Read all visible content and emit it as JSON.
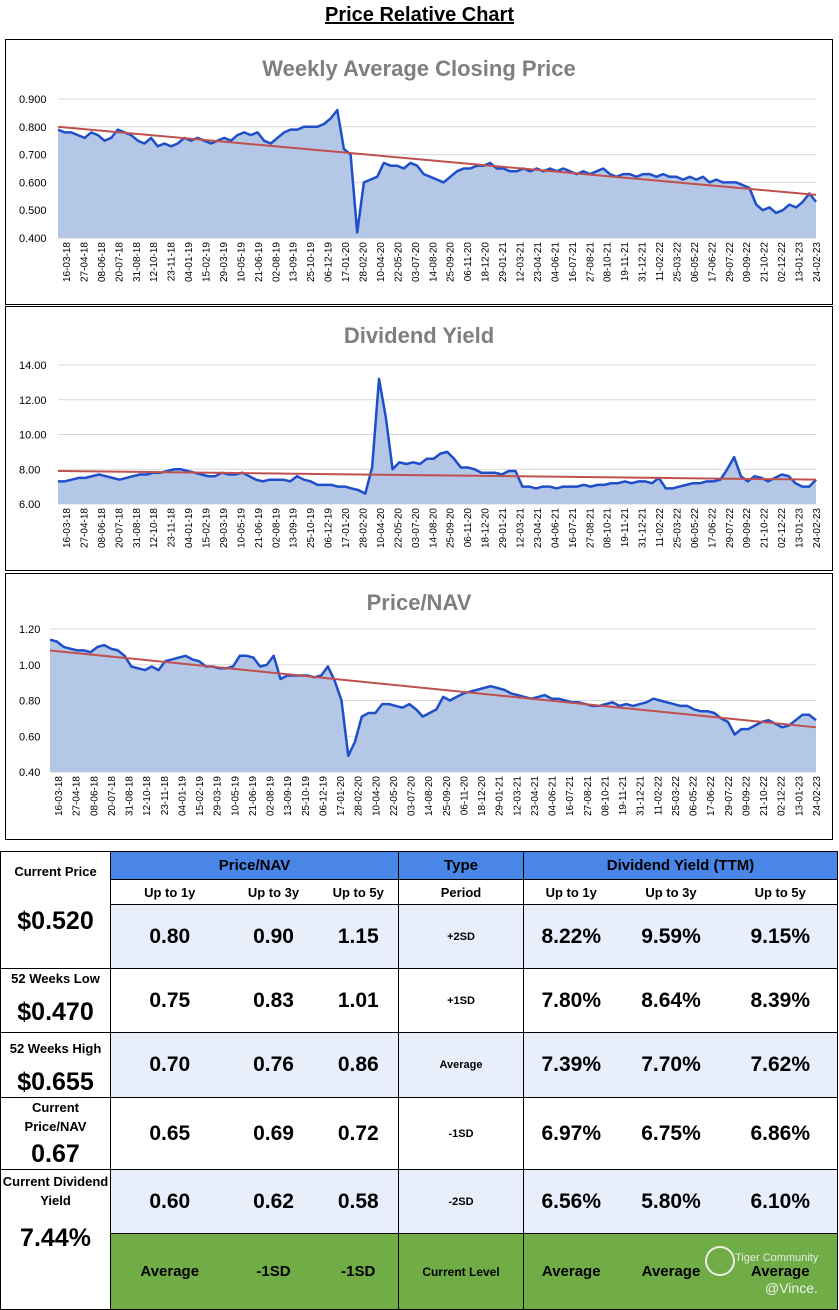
{
  "page_title": "Price Relative Chart",
  "colors": {
    "line": "#1f4ec9",
    "fill": "#b4c7e7",
    "trend": "#c0504d",
    "header": "#4a86e8",
    "green": "#70ad47",
    "rowA": "#e8effb"
  },
  "x_labels": [
    "16-03-18",
    "27-04-18",
    "08-06-18",
    "20-07-18",
    "31-08-18",
    "12-10-18",
    "23-11-18",
    "04-01-19",
    "15-02-19",
    "29-03-19",
    "10-05-19",
    "21-06-19",
    "02-08-19",
    "13-09-19",
    "25-10-19",
    "06-12-19",
    "17-01-20",
    "28-02-20",
    "10-04-20",
    "22-05-20",
    "03-07-20",
    "14-08-20",
    "25-09-20",
    "06-11-20",
    "18-12-20",
    "29-01-21",
    "12-03-21",
    "23-04-21",
    "04-06-21",
    "16-07-21",
    "27-08-21",
    "08-10-21",
    "19-11-21",
    "31-12-21",
    "11-02-22",
    "25-03-22",
    "06-05-22",
    "17-06-22",
    "29-07-22",
    "09-09-22",
    "21-10-22",
    "02-12-22",
    "13-01-23",
    "24-02-23"
  ],
  "chart_data": [
    {
      "type": "area",
      "title": "Weekly Average Closing Price",
      "ylim": [
        0.4,
        0.9
      ],
      "yticks": [
        "0.400",
        "0.500",
        "0.600",
        "0.700",
        "0.800",
        "0.900"
      ],
      "ytick_values": [
        0.4,
        0.5,
        0.6,
        0.7,
        0.8,
        0.9
      ],
      "trend": [
        0.8,
        0.555
      ],
      "series": [
        {
          "name": "Weekly Average Closing Price",
          "values": [
            0.79,
            0.78,
            0.78,
            0.77,
            0.76,
            0.78,
            0.77,
            0.75,
            0.76,
            0.79,
            0.78,
            0.77,
            0.75,
            0.74,
            0.76,
            0.73,
            0.74,
            0.73,
            0.74,
            0.76,
            0.75,
            0.76,
            0.75,
            0.74,
            0.75,
            0.76,
            0.75,
            0.77,
            0.78,
            0.77,
            0.78,
            0.75,
            0.74,
            0.76,
            0.78,
            0.79,
            0.79,
            0.8,
            0.8,
            0.8,
            0.81,
            0.83,
            0.86,
            0.72,
            0.7,
            0.42,
            0.6,
            0.61,
            0.62,
            0.67,
            0.66,
            0.66,
            0.65,
            0.67,
            0.66,
            0.63,
            0.62,
            0.61,
            0.6,
            0.62,
            0.64,
            0.65,
            0.65,
            0.66,
            0.66,
            0.67,
            0.65,
            0.65,
            0.64,
            0.64,
            0.65,
            0.64,
            0.65,
            0.64,
            0.65,
            0.64,
            0.65,
            0.64,
            0.63,
            0.64,
            0.63,
            0.64,
            0.65,
            0.63,
            0.62,
            0.63,
            0.63,
            0.62,
            0.63,
            0.63,
            0.62,
            0.63,
            0.62,
            0.62,
            0.61,
            0.62,
            0.61,
            0.62,
            0.6,
            0.61,
            0.6,
            0.6,
            0.6,
            0.59,
            0.58,
            0.52,
            0.5,
            0.51,
            0.49,
            0.5,
            0.52,
            0.51,
            0.53,
            0.56,
            0.53
          ]
        }
      ]
    },
    {
      "type": "area",
      "title": "Dividend Yield",
      "ylim": [
        6.0,
        14.0
      ],
      "yticks": [
        "6.00",
        "8.00",
        "10.00",
        "12.00",
        "14.00"
      ],
      "ytick_values": [
        6,
        8,
        10,
        12,
        14
      ],
      "trend": [
        7.9,
        7.4
      ],
      "series": [
        {
          "name": "Dividend Yield",
          "values": [
            7.3,
            7.3,
            7.4,
            7.5,
            7.5,
            7.6,
            7.7,
            7.6,
            7.5,
            7.4,
            7.5,
            7.6,
            7.7,
            7.7,
            7.8,
            7.8,
            7.9,
            8.0,
            8.0,
            7.9,
            7.8,
            7.7,
            7.6,
            7.6,
            7.8,
            7.7,
            7.7,
            7.8,
            7.6,
            7.4,
            7.3,
            7.4,
            7.4,
            7.4,
            7.3,
            7.6,
            7.4,
            7.3,
            7.1,
            7.1,
            7.1,
            7.0,
            7.0,
            6.9,
            6.8,
            6.6,
            8.1,
            13.2,
            11.0,
            8.0,
            8.4,
            8.3,
            8.4,
            8.3,
            8.6,
            8.6,
            8.9,
            9.0,
            8.6,
            8.1,
            8.1,
            8.0,
            7.8,
            7.8,
            7.8,
            7.7,
            7.9,
            7.9,
            7.0,
            7.0,
            6.9,
            7.0,
            7.0,
            6.9,
            7.0,
            7.0,
            7.0,
            7.1,
            7.0,
            7.1,
            7.1,
            7.2,
            7.2,
            7.3,
            7.2,
            7.3,
            7.3,
            7.2,
            7.5,
            6.9,
            6.9,
            7.0,
            7.1,
            7.2,
            7.2,
            7.3,
            7.3,
            7.4,
            8.0,
            8.7,
            7.6,
            7.3,
            7.6,
            7.5,
            7.3,
            7.5,
            7.7,
            7.6,
            7.2,
            7.0,
            7.0,
            7.4
          ]
        }
      ]
    },
    {
      "type": "area",
      "title": "Price/NAV",
      "ylim": [
        0.4,
        1.2
      ],
      "yticks": [
        "0.40",
        "0.60",
        "0.80",
        "1.00",
        "1.20"
      ],
      "ytick_values": [
        0.4,
        0.6,
        0.8,
        1.0,
        1.2
      ],
      "trend": [
        1.08,
        0.65
      ],
      "series": [
        {
          "name": "Price/NAV",
          "values": [
            1.14,
            1.13,
            1.1,
            1.09,
            1.08,
            1.08,
            1.07,
            1.1,
            1.11,
            1.09,
            1.08,
            1.05,
            0.99,
            0.98,
            0.97,
            0.99,
            0.97,
            1.02,
            1.03,
            1.04,
            1.05,
            1.03,
            1.02,
            0.99,
            0.99,
            0.98,
            0.98,
            0.99,
            1.05,
            1.05,
            1.04,
            0.99,
            1.0,
            1.05,
            0.92,
            0.94,
            0.94,
            0.94,
            0.94,
            0.93,
            0.94,
            0.99,
            0.91,
            0.8,
            0.49,
            0.57,
            0.71,
            0.73,
            0.73,
            0.78,
            0.78,
            0.77,
            0.76,
            0.78,
            0.75,
            0.71,
            0.73,
            0.75,
            0.82,
            0.8,
            0.82,
            0.84,
            0.85,
            0.86,
            0.87,
            0.88,
            0.87,
            0.86,
            0.84,
            0.83,
            0.82,
            0.81,
            0.82,
            0.83,
            0.81,
            0.81,
            0.8,
            0.79,
            0.79,
            0.78,
            0.77,
            0.77,
            0.78,
            0.79,
            0.77,
            0.78,
            0.77,
            0.78,
            0.79,
            0.81,
            0.8,
            0.79,
            0.78,
            0.77,
            0.77,
            0.75,
            0.74,
            0.74,
            0.73,
            0.7,
            0.68,
            0.61,
            0.64,
            0.64,
            0.66,
            0.68,
            0.69,
            0.67,
            0.65,
            0.66,
            0.69,
            0.72,
            0.72,
            0.69
          ]
        }
      ]
    }
  ],
  "table": {
    "pnav_header": "Price/NAV",
    "type_header": "Type",
    "dy_header": "Dividend Yield (TTM)",
    "sub": {
      "a": "Up to 1y",
      "b": "Up to 3y",
      "c": "Up to 5y",
      "period": "Period",
      "d": "Up to 1y",
      "e": "Up to 3y",
      "f": "Up to 5y"
    },
    "rows": [
      {
        "p1": "0.80",
        "p3": "0.90",
        "p5": "1.15",
        "type": "+2SD",
        "d1": "8.22%",
        "d3": "9.59%",
        "d5": "9.15%"
      },
      {
        "p1": "0.75",
        "p3": "0.83",
        "p5": "1.01",
        "type": "+1SD",
        "d1": "7.80%",
        "d3": "8.64%",
        "d5": "8.39%"
      },
      {
        "p1": "0.70",
        "p3": "0.76",
        "p5": "0.86",
        "type": "Average",
        "d1": "7.39%",
        "d3": "7.70%",
        "d5": "7.62%"
      },
      {
        "p1": "0.65",
        "p3": "0.69",
        "p5": "0.72",
        "type": "-1SD",
        "d1": "6.97%",
        "d3": "6.75%",
        "d5": "6.86%"
      },
      {
        "p1": "0.60",
        "p3": "0.62",
        "p5": "0.58",
        "type": "-2SD",
        "d1": "6.56%",
        "d3": "5.80%",
        "d5": "6.10%"
      }
    ],
    "current": {
      "p1": "Average",
      "p3": "-1SD",
      "p5": "-1SD",
      "type": "Current Level",
      "d1": "Average",
      "d3": "Average",
      "d5": "Average"
    }
  },
  "side": {
    "current_price_label": "Current Price",
    "current_price": "$0.520",
    "low_label": "52 Weeks Low",
    "low": "$0.470",
    "high_label": "52 Weeks High",
    "high": "$0.655",
    "pnav_label": "Current Price/NAV",
    "pnav": "0.67",
    "dy_label": "Current Dividend Yield",
    "dy": "7.44%"
  },
  "watermark": {
    "line1": "Tiger Community",
    "line2": "@Vince."
  }
}
